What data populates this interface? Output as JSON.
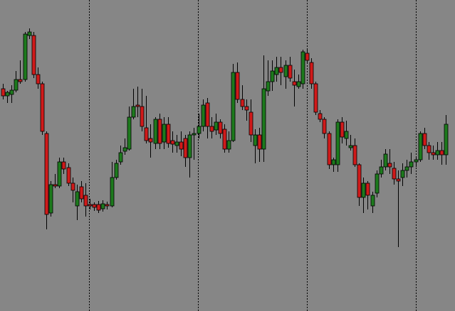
{
  "chart_data": {
    "type": "candlestick",
    "up_color": "#1d7a1d",
    "down_color": "#d01a1a",
    "ylim": [
      0,
      438
    ],
    "open": [
      313,
      303,
      305,
      311,
      326,
      326,
      388,
      388,
      333,
      320,
      250,
      138,
      178,
      176,
      210,
      202,
      180,
      148,
      175,
      163,
      150,
      150,
      150,
      144,
      150,
      148,
      188,
      210,
      225,
      228,
      273,
      290,
      288,
      258,
      243,
      236,
      270,
      238,
      263,
      240,
      233,
      238,
      243,
      216,
      248,
      250,
      260,
      293,
      260,
      255,
      266,
      256,
      228,
      240,
      336,
      298,
      288,
      280,
      233,
      248,
      228,
      310,
      323,
      333,
      343,
      330,
      346,
      323,
      316,
      320,
      363,
      350,
      320,
      278,
      270,
      250,
      206,
      206,
      266,
      243,
      230,
      233,
      206,
      160,
      180,
      148,
      166,
      193,
      203,
      208,
      201,
      186,
      188,
      198,
      203,
      210,
      213,
      250,
      233,
      223,
      220,
      226,
      220
    ],
    "high": [
      320,
      310,
      318,
      338,
      353,
      393,
      398,
      393,
      343,
      323,
      253,
      183,
      193,
      216,
      216,
      208,
      188,
      178,
      183,
      180,
      158,
      153,
      155,
      156,
      154,
      210,
      213,
      233,
      243,
      288,
      313,
      316,
      313,
      303,
      263,
      273,
      278,
      273,
      273,
      253,
      248,
      253,
      248,
      253,
      258,
      278,
      298,
      300,
      273,
      278,
      270,
      263,
      253,
      348,
      350,
      318,
      298,
      298,
      256,
      258,
      360,
      353,
      353,
      358,
      358,
      353,
      358,
      340,
      333,
      368,
      368,
      356,
      323,
      283,
      273,
      253,
      216,
      270,
      273,
      268,
      248,
      243,
      208,
      188,
      183,
      168,
      198,
      213,
      228,
      228,
      210,
      198,
      208,
      213,
      223,
      218,
      253,
      258,
      238,
      233,
      238,
      238,
      276
    ],
    "low": [
      298,
      293,
      293,
      308,
      320,
      323,
      383,
      328,
      313,
      248,
      115,
      133,
      173,
      173,
      193,
      176,
      153,
      128,
      153,
      133,
      143,
      141,
      138,
      140,
      143,
      146,
      185,
      206,
      220,
      226,
      270,
      273,
      253,
      236,
      216,
      228,
      228,
      228,
      230,
      223,
      223,
      218,
      203,
      188,
      213,
      243,
      253,
      243,
      243,
      248,
      243,
      223,
      223,
      238,
      293,
      283,
      268,
      238,
      208,
      210,
      210,
      303,
      310,
      323,
      318,
      313,
      323,
      288,
      313,
      313,
      348,
      313,
      276,
      266,
      243,
      200,
      196,
      196,
      236,
      233,
      226,
      203,
      148,
      138,
      143,
      138,
      160,
      188,
      198,
      193,
      178,
      90,
      176,
      188,
      193,
      203,
      210,
      228,
      213,
      213,
      213,
      206,
      206
    ],
    "close": [
      303,
      308,
      311,
      326,
      323,
      390,
      393,
      333,
      320,
      253,
      136,
      178,
      176,
      210,
      200,
      180,
      170,
      168,
      158,
      148,
      148,
      146,
      142,
      151,
      148,
      188,
      208,
      223,
      230,
      273,
      288,
      288,
      260,
      240,
      238,
      270,
      236,
      263,
      236,
      235,
      238,
      228,
      216,
      248,
      250,
      260,
      290,
      260,
      253,
      266,
      250,
      228,
      240,
      336,
      298,
      288,
      283,
      248,
      248,
      228,
      313,
      323,
      338,
      343,
      336,
      346,
      328,
      318,
      323,
      365,
      353,
      320,
      280,
      270,
      250,
      206,
      213,
      266,
      245,
      253,
      233,
      206,
      160,
      180,
      163,
      163,
      193,
      203,
      221,
      203,
      186,
      183,
      198,
      203,
      210,
      213,
      250,
      233,
      223,
      220,
      226,
      220,
      263
    ]
  }
}
